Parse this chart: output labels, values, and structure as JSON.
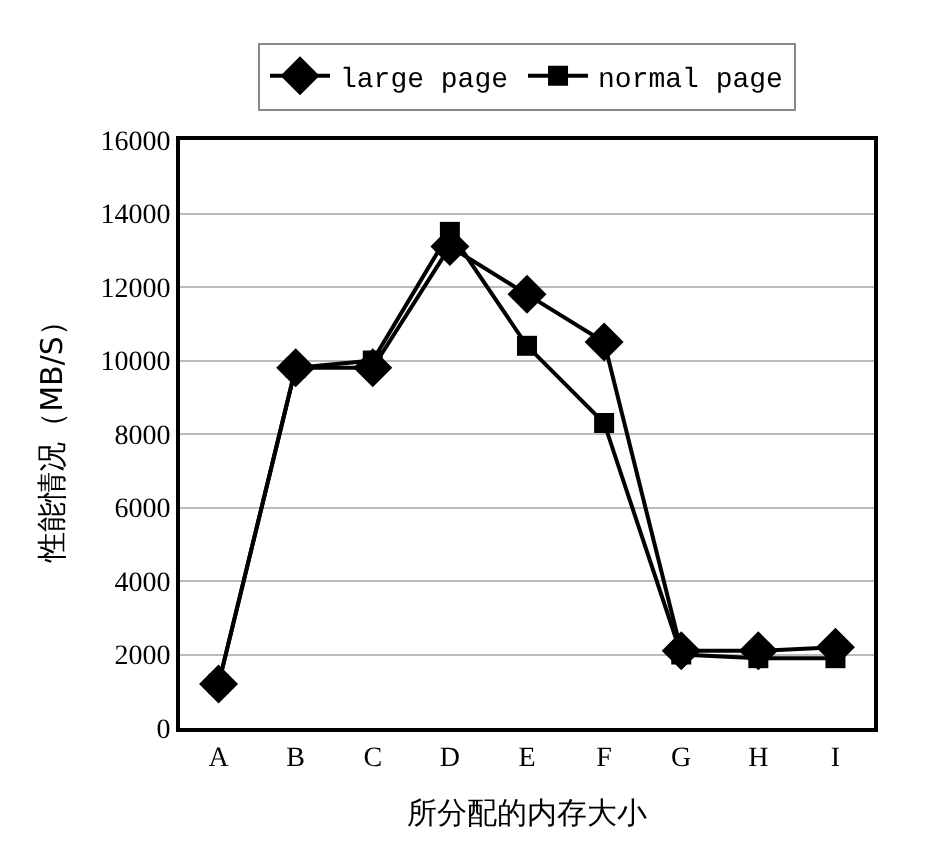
{
  "chart_data": {
    "type": "line",
    "xlabel": "所分配的内存大小",
    "ylabel": "性能情况（MB/S）",
    "categories": [
      "A",
      "B",
      "C",
      "D",
      "E",
      "F",
      "G",
      "H",
      "I"
    ],
    "series": [
      {
        "name": "large page",
        "color": "#000000",
        "marker": "diamond",
        "values": [
          1200,
          9800,
          9800,
          13100,
          11800,
          10500,
          2100,
          2100,
          2200
        ]
      },
      {
        "name": "normal page",
        "color": "#000000",
        "marker": "square",
        "values": [
          1200,
          9800,
          10000,
          13500,
          10400,
          8300,
          2000,
          1900,
          1900
        ]
      }
    ],
    "ylim": [
      0,
      16000
    ],
    "yticks": [
      0,
      2000,
      4000,
      6000,
      8000,
      10000,
      12000,
      14000,
      16000
    ],
    "grid": "y",
    "legend": "top",
    "line_style": "solid"
  }
}
